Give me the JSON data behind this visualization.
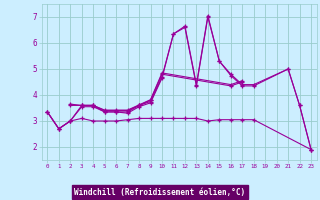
{
  "xlabel": "Windchill (Refroidissement éolien,°C)",
  "bg_color": "#cceeff",
  "line_color": "#990099",
  "grid_color": "#99cccc",
  "label_bg": "#660066",
  "xlim": [
    -0.5,
    23.5
  ],
  "ylim": [
    1.5,
    7.5
  ],
  "xticks": [
    0,
    1,
    2,
    3,
    4,
    5,
    6,
    7,
    8,
    9,
    10,
    11,
    12,
    13,
    14,
    15,
    16,
    17,
    18,
    19,
    20,
    21,
    22,
    23
  ],
  "yticks": [
    2,
    3,
    4,
    5,
    6,
    7
  ],
  "line1_x": [
    0,
    1,
    2,
    3,
    4,
    5,
    6,
    7,
    8,
    9,
    10,
    11,
    12,
    13,
    14,
    15,
    16,
    17,
    18,
    21,
    22,
    23
  ],
  "line1_y": [
    3.35,
    2.7,
    3.0,
    3.6,
    3.6,
    3.35,
    3.35,
    3.3,
    3.55,
    3.7,
    4.65,
    6.35,
    6.6,
    4.35,
    7.0,
    5.3,
    4.75,
    4.35,
    4.35,
    5.0,
    3.6,
    1.9
  ],
  "line2_x": [
    0,
    1,
    2,
    3,
    4,
    5,
    6,
    7,
    8,
    9,
    10,
    11,
    12,
    13,
    14,
    15,
    16,
    17,
    18,
    21,
    22,
    23
  ],
  "line2_y": [
    3.35,
    2.7,
    3.0,
    3.55,
    3.55,
    3.35,
    3.35,
    3.35,
    3.6,
    3.75,
    4.7,
    6.35,
    6.65,
    4.4,
    7.05,
    5.3,
    4.8,
    4.4,
    4.4,
    5.0,
    3.6,
    1.9
  ],
  "line3_x": [
    2,
    3,
    4,
    5,
    6,
    7,
    8,
    9,
    10,
    16,
    17
  ],
  "line3_y": [
    3.6,
    3.6,
    3.6,
    3.4,
    3.4,
    3.4,
    3.6,
    3.8,
    4.8,
    4.35,
    4.5
  ],
  "line4_x": [
    2,
    3,
    4,
    5,
    6,
    7,
    8,
    9,
    10,
    16,
    17
  ],
  "line4_y": [
    3.65,
    3.6,
    3.6,
    3.42,
    3.42,
    3.42,
    3.62,
    3.82,
    4.85,
    4.4,
    4.55
  ],
  "line5_x": [
    0,
    1,
    2,
    3,
    4,
    5,
    6,
    7,
    8,
    9,
    10,
    11,
    12,
    13,
    14,
    15,
    16,
    17,
    18,
    23
  ],
  "line5_y": [
    3.35,
    2.7,
    3.0,
    3.1,
    3.0,
    3.0,
    3.0,
    3.05,
    3.1,
    3.1,
    3.1,
    3.1,
    3.1,
    3.1,
    3.0,
    3.05,
    3.05,
    3.05,
    3.05,
    1.9
  ]
}
